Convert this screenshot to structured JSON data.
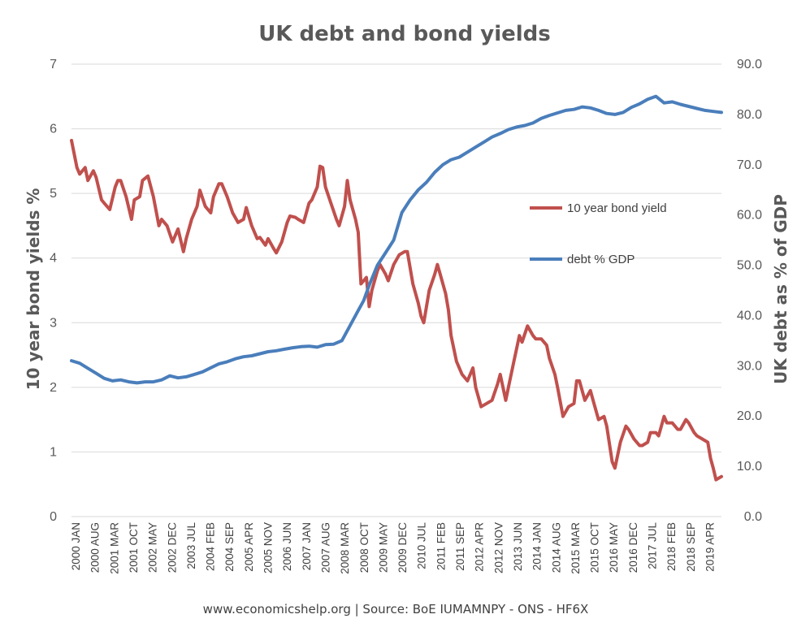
{
  "chart_data": {
    "type": "line",
    "title": "UK debt and bond yields",
    "ylabel": "10 year bond yields %",
    "y2label": "UK debt as % of GDP",
    "source": "www.economicshelp.org | Source: BoE IUMAMNPY - ONS - HF6X",
    "ylim": [
      0,
      7
    ],
    "y2lim": [
      0,
      90
    ],
    "yticks": [
      "0",
      "1",
      "2",
      "3",
      "4",
      "5",
      "6",
      "7"
    ],
    "y2ticks": [
      "0.0",
      "10.0",
      "20.0",
      "30.0",
      "40.0",
      "50.0",
      "60.0",
      "70.0",
      "80.0",
      "90.0"
    ],
    "grid": "horizontal",
    "xticks": [
      "2000 JAN",
      "2000 AUG",
      "2001 MAR",
      "2001 OCT",
      "2002 MAY",
      "2002 DEC",
      "2003 JUL",
      "2004 FEB",
      "2004 SEP",
      "2005 APR",
      "2005 NOV",
      "2006 JUN",
      "2007 JAN",
      "2007 AUG",
      "2008 MAR",
      "2008 OCT",
      "2009 MAY",
      "2009 DEC",
      "2010 JUL",
      "2011 FEB",
      "2011 SEP",
      "2012 APR",
      "2012 NOV",
      "2013 JUN",
      "2014 JAN",
      "2014 AUG",
      "2015 MAR",
      "2015 OCT",
      "2016 MAY",
      "2016 DEC",
      "2017 JUL",
      "2018 FEB",
      "2018 SEP",
      "2019 APR"
    ],
    "x_range": [
      "2000-01",
      "2019-11"
    ],
    "series": [
      {
        "name": "10 year bond yield",
        "axis": "left",
        "color": "#c0504d",
        "points": [
          [
            "2000-01",
            5.82
          ],
          [
            "2000-03",
            5.4
          ],
          [
            "2000-04",
            5.3
          ],
          [
            "2000-06",
            5.4
          ],
          [
            "2000-07",
            5.2
          ],
          [
            "2000-09",
            5.35
          ],
          [
            "2000-10",
            5.25
          ],
          [
            "2000-12",
            4.9
          ],
          [
            "2001-01",
            4.85
          ],
          [
            "2001-03",
            4.75
          ],
          [
            "2001-05",
            5.1
          ],
          [
            "2001-06",
            5.2
          ],
          [
            "2001-07",
            5.2
          ],
          [
            "2001-09",
            4.95
          ],
          [
            "2001-11",
            4.6
          ],
          [
            "2001-12",
            4.9
          ],
          [
            "2002-02",
            4.95
          ],
          [
            "2002-03",
            5.2
          ],
          [
            "2002-05",
            5.27
          ],
          [
            "2002-07",
            4.95
          ],
          [
            "2002-09",
            4.5
          ],
          [
            "2002-10",
            4.6
          ],
          [
            "2002-12",
            4.5
          ],
          [
            "2003-02",
            4.25
          ],
          [
            "2003-04",
            4.45
          ],
          [
            "2003-06",
            4.1
          ],
          [
            "2003-07",
            4.3
          ],
          [
            "2003-09",
            4.6
          ],
          [
            "2003-11",
            4.8
          ],
          [
            "2003-12",
            5.05
          ],
          [
            "2004-02",
            4.8
          ],
          [
            "2004-04",
            4.7
          ],
          [
            "2004-05",
            4.95
          ],
          [
            "2004-07",
            5.15
          ],
          [
            "2004-08",
            5.15
          ],
          [
            "2004-10",
            4.95
          ],
          [
            "2004-12",
            4.7
          ],
          [
            "2005-02",
            4.55
          ],
          [
            "2005-04",
            4.6
          ],
          [
            "2005-05",
            4.78
          ],
          [
            "2005-07",
            4.5
          ],
          [
            "2005-09",
            4.3
          ],
          [
            "2005-10",
            4.32
          ],
          [
            "2005-12",
            4.2
          ],
          [
            "2006-01",
            4.3
          ],
          [
            "2006-03",
            4.15
          ],
          [
            "2006-04",
            4.08
          ],
          [
            "2006-06",
            4.25
          ],
          [
            "2006-08",
            4.55
          ],
          [
            "2006-09",
            4.65
          ],
          [
            "2006-11",
            4.63
          ],
          [
            "2006-12",
            4.6
          ],
          [
            "2007-02",
            4.55
          ],
          [
            "2007-04",
            4.85
          ],
          [
            "2007-05",
            4.9
          ],
          [
            "2007-07",
            5.1
          ],
          [
            "2007-08",
            5.42
          ],
          [
            "2007-09",
            5.4
          ],
          [
            "2007-10",
            5.1
          ],
          [
            "2007-12",
            4.85
          ],
          [
            "2008-02",
            4.6
          ],
          [
            "2008-03",
            4.5
          ],
          [
            "2008-05",
            4.8
          ],
          [
            "2008-06",
            5.2
          ],
          [
            "2008-07",
            4.9
          ],
          [
            "2008-09",
            4.6
          ],
          [
            "2008-10",
            4.4
          ],
          [
            "2008-11",
            3.6
          ],
          [
            "2009-01",
            3.7
          ],
          [
            "2009-02",
            3.25
          ],
          [
            "2009-03",
            3.5
          ],
          [
            "2009-05",
            3.8
          ],
          [
            "2009-06",
            3.9
          ],
          [
            "2009-08",
            3.75
          ],
          [
            "2009-09",
            3.65
          ],
          [
            "2009-11",
            3.9
          ],
          [
            "2010-01",
            4.05
          ],
          [
            "2010-03",
            4.1
          ],
          [
            "2010-04",
            4.1
          ],
          [
            "2010-06",
            3.6
          ],
          [
            "2010-08",
            3.3
          ],
          [
            "2010-09",
            3.1
          ],
          [
            "2010-10",
            3.0
          ],
          [
            "2010-12",
            3.5
          ],
          [
            "2011-02",
            3.75
          ],
          [
            "2011-03",
            3.9
          ],
          [
            "2011-04",
            3.75
          ],
          [
            "2011-06",
            3.45
          ],
          [
            "2011-07",
            3.2
          ],
          [
            "2011-08",
            2.8
          ],
          [
            "2011-10",
            2.4
          ],
          [
            "2011-12",
            2.2
          ],
          [
            "2012-02",
            2.1
          ],
          [
            "2012-04",
            2.3
          ],
          [
            "2012-05",
            2.0
          ],
          [
            "2012-07",
            1.7
          ],
          [
            "2012-09",
            1.75
          ],
          [
            "2012-11",
            1.8
          ],
          [
            "2013-01",
            2.05
          ],
          [
            "2013-02",
            2.2
          ],
          [
            "2013-04",
            1.8
          ],
          [
            "2013-05",
            2.0
          ],
          [
            "2013-07",
            2.4
          ],
          [
            "2013-09",
            2.8
          ],
          [
            "2013-10",
            2.7
          ],
          [
            "2013-12",
            2.95
          ],
          [
            "2014-02",
            2.8
          ],
          [
            "2014-03",
            2.75
          ],
          [
            "2014-05",
            2.75
          ],
          [
            "2014-07",
            2.65
          ],
          [
            "2014-08",
            2.45
          ],
          [
            "2014-10",
            2.2
          ],
          [
            "2014-11",
            2.0
          ],
          [
            "2015-01",
            1.55
          ],
          [
            "2015-03",
            1.7
          ],
          [
            "2015-05",
            1.75
          ],
          [
            "2015-06",
            2.1
          ],
          [
            "2015-07",
            2.1
          ],
          [
            "2015-09",
            1.8
          ],
          [
            "2015-11",
            1.95
          ],
          [
            "2015-12",
            1.8
          ],
          [
            "2016-02",
            1.5
          ],
          [
            "2016-04",
            1.55
          ],
          [
            "2016-05",
            1.4
          ],
          [
            "2016-07",
            0.85
          ],
          [
            "2016-08",
            0.75
          ],
          [
            "2016-10",
            1.15
          ],
          [
            "2016-12",
            1.4
          ],
          [
            "2017-01",
            1.35
          ],
          [
            "2017-03",
            1.2
          ],
          [
            "2017-05",
            1.1
          ],
          [
            "2017-06",
            1.1
          ],
          [
            "2017-08",
            1.15
          ],
          [
            "2017-09",
            1.3
          ],
          [
            "2017-11",
            1.3
          ],
          [
            "2017-12",
            1.25
          ],
          [
            "2018-02",
            1.55
          ],
          [
            "2018-03",
            1.45
          ],
          [
            "2018-05",
            1.45
          ],
          [
            "2018-07",
            1.35
          ],
          [
            "2018-08",
            1.35
          ],
          [
            "2018-10",
            1.5
          ],
          [
            "2018-11",
            1.45
          ],
          [
            "2019-01",
            1.3
          ],
          [
            "2019-02",
            1.25
          ],
          [
            "2019-04",
            1.2
          ],
          [
            "2019-06",
            1.15
          ],
          [
            "2019-07",
            0.9
          ],
          [
            "2019-08",
            0.75
          ],
          [
            "2019-09",
            0.57
          ],
          [
            "2019-11",
            0.62
          ]
        ]
      },
      {
        "name": "debt % GDP",
        "axis": "right",
        "color": "#4a7ebb",
        "points": [
          [
            "2000-01",
            31.0
          ],
          [
            "2000-04",
            30.5
          ],
          [
            "2000-07",
            29.5
          ],
          [
            "2000-10",
            28.5
          ],
          [
            "2001-01",
            27.5
          ],
          [
            "2001-04",
            27.0
          ],
          [
            "2001-07",
            27.2
          ],
          [
            "2001-10",
            26.8
          ],
          [
            "2002-01",
            26.6
          ],
          [
            "2002-04",
            26.8
          ],
          [
            "2002-07",
            26.8
          ],
          [
            "2002-10",
            27.2
          ],
          [
            "2003-01",
            28.0
          ],
          [
            "2003-04",
            27.6
          ],
          [
            "2003-07",
            27.8
          ],
          [
            "2003-10",
            28.3
          ],
          [
            "2004-01",
            28.8
          ],
          [
            "2004-04",
            29.6
          ],
          [
            "2004-07",
            30.4
          ],
          [
            "2004-10",
            30.8
          ],
          [
            "2005-01",
            31.4
          ],
          [
            "2005-04",
            31.8
          ],
          [
            "2005-07",
            32.0
          ],
          [
            "2005-10",
            32.4
          ],
          [
            "2006-01",
            32.8
          ],
          [
            "2006-04",
            33.0
          ],
          [
            "2006-07",
            33.3
          ],
          [
            "2006-10",
            33.6
          ],
          [
            "2007-01",
            33.8
          ],
          [
            "2007-04",
            33.9
          ],
          [
            "2007-07",
            33.7
          ],
          [
            "2007-10",
            34.2
          ],
          [
            "2008-01",
            34.3
          ],
          [
            "2008-04",
            35.0
          ],
          [
            "2008-07",
            38.0
          ],
          [
            "2008-10",
            41.0
          ],
          [
            "2008-12",
            43.0
          ],
          [
            "2009-02",
            46.0
          ],
          [
            "2009-05",
            50.0
          ],
          [
            "2009-08",
            52.5
          ],
          [
            "2009-11",
            55.0
          ],
          [
            "2010-02",
            60.5
          ],
          [
            "2010-05",
            63.0
          ],
          [
            "2010-08",
            65.0
          ],
          [
            "2010-11",
            66.5
          ],
          [
            "2011-02",
            68.5
          ],
          [
            "2011-05",
            70.0
          ],
          [
            "2011-08",
            71.0
          ],
          [
            "2011-11",
            71.5
          ],
          [
            "2012-02",
            72.5
          ],
          [
            "2012-05",
            73.5
          ],
          [
            "2012-08",
            74.5
          ],
          [
            "2012-11",
            75.5
          ],
          [
            "2013-02",
            76.2
          ],
          [
            "2013-05",
            77.0
          ],
          [
            "2013-08",
            77.5
          ],
          [
            "2013-11",
            77.8
          ],
          [
            "2014-02",
            78.3
          ],
          [
            "2014-05",
            79.2
          ],
          [
            "2014-08",
            79.8
          ],
          [
            "2014-11",
            80.3
          ],
          [
            "2015-02",
            80.8
          ],
          [
            "2015-05",
            81.0
          ],
          [
            "2015-08",
            81.5
          ],
          [
            "2015-11",
            81.3
          ],
          [
            "2016-02",
            80.8
          ],
          [
            "2016-05",
            80.2
          ],
          [
            "2016-08",
            80.0
          ],
          [
            "2016-11",
            80.4
          ],
          [
            "2017-02",
            81.4
          ],
          [
            "2017-05",
            82.1
          ],
          [
            "2017-08",
            83.0
          ],
          [
            "2017-11",
            83.6
          ],
          [
            "2018-02",
            82.3
          ],
          [
            "2018-05",
            82.5
          ],
          [
            "2018-08",
            82.0
          ],
          [
            "2018-11",
            81.6
          ],
          [
            "2019-02",
            81.2
          ],
          [
            "2019-05",
            80.8
          ],
          [
            "2019-08",
            80.6
          ],
          [
            "2019-11",
            80.4
          ]
        ]
      }
    ]
  }
}
